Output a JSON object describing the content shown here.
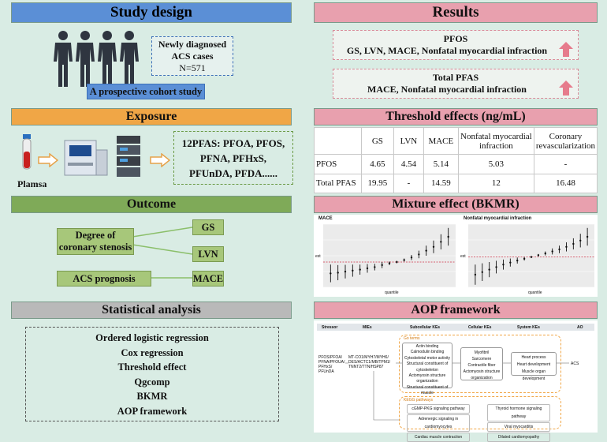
{
  "study_design": {
    "header": "Study design",
    "cases_line1": "Newly diagnosed",
    "cases_line2": "ACS cases",
    "cases_n": "N=571",
    "cohort_label": "A prospective cohort study"
  },
  "exposure": {
    "header": "Exposure",
    "sample_label": "Plamsa",
    "pfas_line1": "12PFAS: PFOA, PFOS,",
    "pfas_line2": "PFNA, PFHxS,",
    "pfas_line3": "PFUnDA, PFDA......"
  },
  "outcome": {
    "header": "Outcome",
    "stenosis_line1": "Degree of",
    "stenosis_line2": "coronary stenosis",
    "prognosis": "ACS prognosis",
    "gs": "GS",
    "lvn": "LVN",
    "mace": "MACE"
  },
  "statistical": {
    "header": "Statistical analysis",
    "methods": [
      "Ordered logistic regression",
      "Cox regression",
      "Threshold effect",
      "Qgcomp",
      "BKMR",
      "AOP framework"
    ]
  },
  "results": {
    "header": "Results",
    "pfos_title": "PFOS",
    "pfos_outcomes": "GS, LVN, MACE, Nonfatal myocardial infraction",
    "total_title": "Total PFAS",
    "total_outcomes": "MACE, Nonfatal myocardial infraction",
    "arrow_color": "#e67b8c"
  },
  "threshold": {
    "header": "Threshold effects (ng/mL)",
    "columns": [
      "",
      "GS",
      "LVN",
      "MACE",
      "Nonfatal myocardial infraction",
      "Coronary revascularization"
    ],
    "rows": [
      [
        "PFOS",
        "4.65",
        "4.54",
        "5.14",
        "5.03",
        "-"
      ],
      [
        "Total PFAS",
        "19.95",
        "-",
        "14.59",
        "12",
        "16.48"
      ]
    ]
  },
  "mixture": {
    "header": "Mixture effect (BKMR)",
    "panel1_title": "MACE",
    "panel2_title": "Nonfatal myocardial infraction",
    "xlabel": "quantile",
    "ylabel": "est",
    "chart_data": [
      {
        "type": "scatter",
        "title": "MACE",
        "xlabel": "quantile",
        "ylabel": "est",
        "x": [
          0.1,
          0.15,
          0.2,
          0.25,
          0.3,
          0.35,
          0.4,
          0.45,
          0.5,
          0.55,
          0.6,
          0.65,
          0.7,
          0.75,
          0.8,
          0.85,
          0.9
        ],
        "y": [
          -0.45,
          -0.42,
          -0.38,
          -0.34,
          -0.3,
          -0.25,
          -0.2,
          -0.12,
          -0.05,
          0.0,
          0.08,
          0.18,
          0.3,
          0.45,
          0.6,
          0.8,
          1.0
        ],
        "lower": [
          -0.8,
          -0.72,
          -0.65,
          -0.58,
          -0.5,
          -0.42,
          -0.33,
          -0.24,
          -0.12,
          -0.05,
          0.02,
          0.08,
          0.15,
          0.25,
          0.35,
          0.5,
          0.65
        ],
        "upper": [
          -0.1,
          -0.12,
          -0.11,
          -0.1,
          -0.1,
          -0.08,
          -0.07,
          0.0,
          0.02,
          0.05,
          0.14,
          0.28,
          0.45,
          0.65,
          0.85,
          1.1,
          1.35
        ],
        "ylim": [
          -1.0,
          1.5
        ]
      },
      {
        "type": "scatter",
        "title": "Nonfatal myocardial infraction",
        "xlabel": "quantile",
        "ylabel": "est",
        "x": [
          0.1,
          0.15,
          0.2,
          0.25,
          0.3,
          0.35,
          0.4,
          0.45,
          0.5,
          0.55,
          0.6,
          0.65,
          0.7,
          0.75,
          0.8,
          0.85,
          0.9
        ],
        "y": [
          -0.7,
          -0.6,
          -0.5,
          -0.4,
          -0.3,
          -0.22,
          -0.14,
          -0.07,
          0.0,
          0.07,
          0.14,
          0.22,
          0.3,
          0.4,
          0.52,
          0.65,
          0.8
        ],
        "lower": [
          -1.1,
          -0.95,
          -0.8,
          -0.65,
          -0.5,
          -0.38,
          -0.26,
          -0.14,
          -0.04,
          0.02,
          0.06,
          0.1,
          0.15,
          0.22,
          0.3,
          0.38,
          0.45
        ],
        "upper": [
          -0.3,
          -0.25,
          -0.2,
          -0.15,
          -0.1,
          -0.06,
          -0.02,
          0.0,
          0.04,
          0.12,
          0.22,
          0.34,
          0.45,
          0.58,
          0.74,
          0.92,
          1.15
        ],
        "ylim": [
          -1.2,
          1.3
        ]
      }
    ]
  },
  "aop": {
    "header": "AOP framework",
    "col_headers": [
      "Stressor",
      "MIEs",
      "Subcellular KEs",
      "Cellular KEs",
      "System KEs",
      "AO"
    ],
    "stressors": "PFOS/PFOA/ PFNA/PFOUA/ PFHxS/ PFUnDA",
    "mies": "MT-CO1/MYH7/MYH6/ DES/ACTC1/MB/TPM1/ TNNT2/TTN/HSP87",
    "go_label": "Go terms",
    "subcellular": [
      "Actin binding",
      "Calmodulin binding",
      "Cytoskeletal motor activity",
      "Structural constituent of cytoskeleton",
      "Actomyosin structure organization",
      "Structural constituent of muscle"
    ],
    "cellular": [
      "Myofibril",
      "Sarcomere",
      "Contractile fiber",
      "Actomyosin structure organization"
    ],
    "system": [
      "Heart process",
      "Heart development",
      "Muscle organ development"
    ],
    "ao": "ACS",
    "kegg_label": "KEGG pathways",
    "kegg_left": [
      "cGMP-PKG signaling pathway",
      "Adrenergic signaling in cardiomyocytes",
      "Cardiac muscle contraction"
    ],
    "kegg_right": [
      "Thyroid hormone signaling pathway",
      "Viral myocarditis",
      "Dilated cardiomyopathy"
    ]
  }
}
